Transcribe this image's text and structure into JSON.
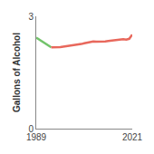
{
  "chart_data": {
    "type": "line",
    "y_label": "Gallons of Alcohol",
    "series": [
      {
        "color": "#72c36a",
        "x": [
          1989,
          1990,
          1991,
          1992,
          1993,
          1994
        ],
        "values": [
          2.43,
          2.38,
          2.33,
          2.29,
          2.22,
          2.17
        ]
      },
      {
        "color": "#e8685c",
        "x": [
          1994,
          1995,
          1996,
          1997,
          1998,
          1999,
          2000,
          2001,
          2002,
          2003,
          2004,
          2005,
          2006,
          2007,
          2008,
          2009,
          2010,
          2011,
          2012,
          2013,
          2014,
          2015,
          2016,
          2017,
          2018,
          2019,
          2020,
          2021
        ],
        "values": [
          2.17,
          2.17,
          2.17,
          2.18,
          2.19,
          2.2,
          2.21,
          2.22,
          2.23,
          2.25,
          2.26,
          2.28,
          2.3,
          2.32,
          2.33,
          2.32,
          2.32,
          2.33,
          2.33,
          2.34,
          2.35,
          2.36,
          2.37,
          2.38,
          2.39,
          2.38,
          2.4,
          2.51
        ]
      }
    ],
    "xlim": [
      1989,
      2021
    ],
    "xticks": [
      1989,
      2021
    ],
    "ylim": [
      0,
      3
    ],
    "yticks": [
      0,
      3
    ],
    "grid": false
  }
}
